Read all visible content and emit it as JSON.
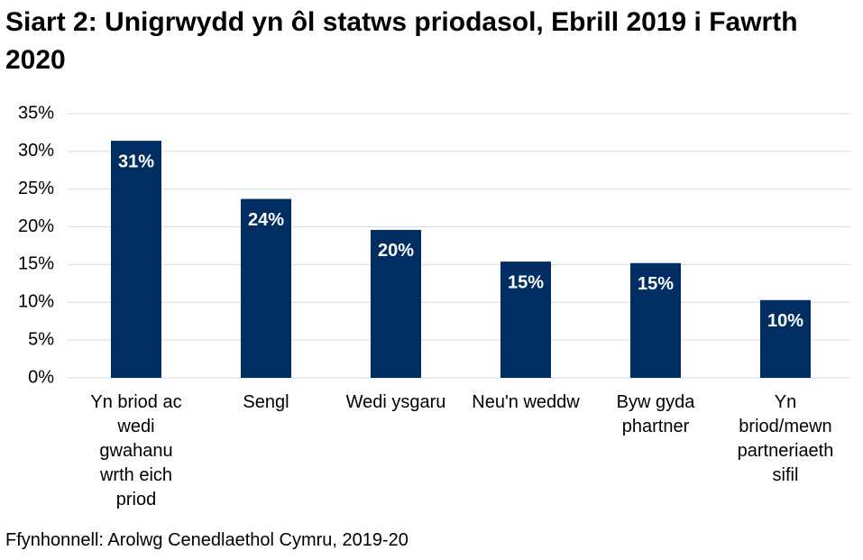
{
  "chart_data": {
    "type": "bar",
    "title": "Siart 2: Unigrwydd yn ôl statws priodasol, Ebrill 2019 i Fawrth 2020",
    "source": "Ffynhonnell: Arolwg Cenedlaethol Cymru, 2019-20",
    "categories": [
      "Yn briod ac wedi gwahanu wrth eich priod",
      "Sengl",
      "Wedi ysgaru",
      "Neu'n weddw",
      "Byw gyda phartner",
      "Yn briod/mewn partneriaeth sifil"
    ],
    "values": [
      31.4,
      23.7,
      19.6,
      15.4,
      15.2,
      10.3
    ],
    "value_labels": [
      "31%",
      "24%",
      "20%",
      "15%",
      "15%",
      "10%"
    ],
    "color": "#002d62",
    "ylim": [
      0,
      35
    ],
    "yticks": [
      {
        "value": 0,
        "label": "0%"
      },
      {
        "value": 5,
        "label": "5%"
      },
      {
        "value": 10,
        "label": "10%"
      },
      {
        "value": 15,
        "label": "15%"
      },
      {
        "value": 20,
        "label": "20%"
      },
      {
        "value": 25,
        "label": "25%"
      },
      {
        "value": 30,
        "label": "30%"
      },
      {
        "value": 35,
        "label": "35%"
      }
    ],
    "grid": true
  }
}
